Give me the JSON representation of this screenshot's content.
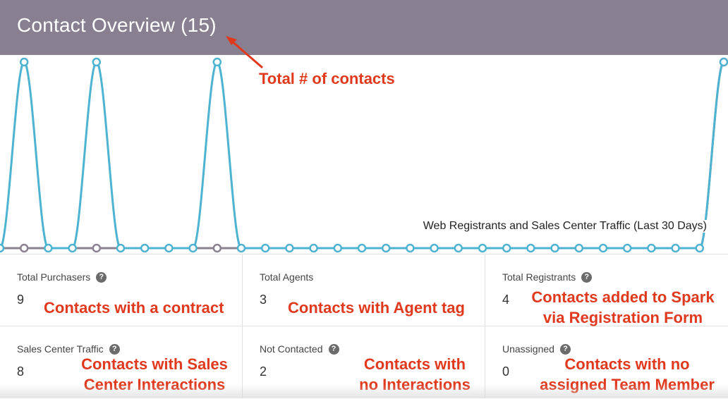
{
  "header": {
    "title": "Contact Overview (15)"
  },
  "chart": {
    "caption": "Web Registrants and Sales Center Traffic (Last 30 Days)",
    "colors": {
      "registrants": "#4db3d0",
      "traffic": "#8a8290"
    }
  },
  "chart_data": {
    "type": "line",
    "title": "Web Registrants and Sales Center Traffic (Last 30 Days)",
    "series": [
      {
        "values": [
          0,
          1,
          0,
          0,
          1,
          0,
          0,
          0,
          0,
          1,
          0,
          0,
          0,
          0,
          0,
          0,
          0,
          0,
          0,
          0,
          0,
          0,
          0,
          0,
          0,
          0,
          0,
          0,
          0,
          0,
          1
        ]
      },
      {
        "values": [
          0,
          0,
          0,
          0,
          0,
          0,
          0,
          0,
          0,
          0,
          0,
          0,
          0,
          0,
          0,
          0,
          0,
          0,
          0,
          0,
          0,
          0,
          0,
          0,
          0,
          0,
          0,
          0,
          0,
          0,
          1
        ]
      }
    ]
  },
  "stats": [
    {
      "label": "Total Purchasers",
      "value": "9",
      "help": true
    },
    {
      "label": "Total Agents",
      "value": "3",
      "help": false
    },
    {
      "label": "Total Registrants",
      "value": "4",
      "help": true
    },
    {
      "label": "Sales Center Traffic",
      "value": "8",
      "help": true
    },
    {
      "label": "Not Contacted",
      "value": "2",
      "help": true
    },
    {
      "label": "Unassigned",
      "value": "0",
      "help": true
    }
  ],
  "annotations": {
    "total_contacts": "Total # of contacts",
    "purchasers": "Contacts with a contract",
    "agents": "Contacts with Agent tag",
    "registrants_1": "Contacts added to Spark",
    "registrants_2": "via Registration Form",
    "traffic_1": "Contacts with Sales",
    "traffic_2": "Center Interactions",
    "not_contacted_1": "Contacts with",
    "not_contacted_2": "no Interactions",
    "unassigned_1": "Contacts with no",
    "unassigned_2": "assigned Team Member",
    "color": "#e0391e"
  },
  "icons": {
    "help": "question-circle-icon",
    "arrow": "arrow-icon"
  }
}
